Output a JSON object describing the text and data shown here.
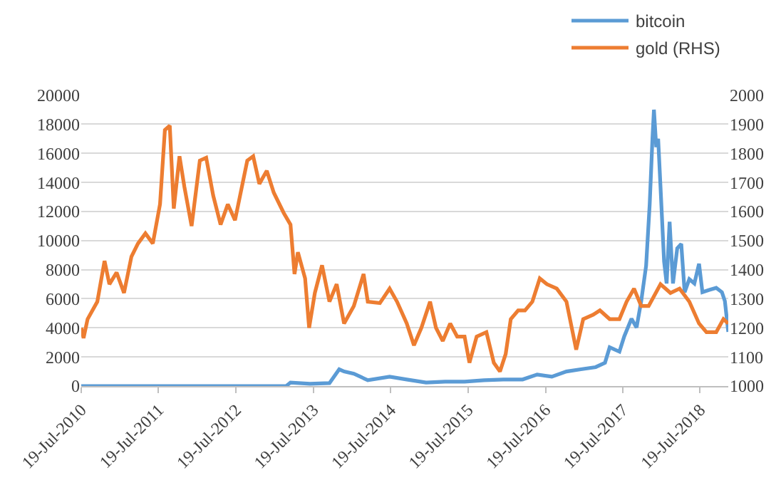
{
  "chart_data": {
    "type": "line",
    "xlim": [
      "2010-07-19",
      "2018-11-29"
    ],
    "xticks": [
      {
        "value": "2010-07-19",
        "label": "19-Jul-2010"
      },
      {
        "value": "2011-07-19",
        "label": "19-Jul-2011"
      },
      {
        "value": "2012-07-19",
        "label": "19-Jul-2012"
      },
      {
        "value": "2013-07-19",
        "label": "19-Jul-2013"
      },
      {
        "value": "2014-07-19",
        "label": "19-Jul-2014"
      },
      {
        "value": "2015-07-19",
        "label": "19-Jul-2015"
      },
      {
        "value": "2016-07-19",
        "label": "19-Jul-2016"
      },
      {
        "value": "2017-07-19",
        "label": "19-Jul-2017"
      },
      {
        "value": "2018-07-19",
        "label": "19-Jul-2018"
      }
    ],
    "ylim": [
      0,
      20000
    ],
    "yticks": [
      0,
      2000,
      4000,
      6000,
      8000,
      10000,
      12000,
      14000,
      16000,
      18000,
      20000
    ],
    "y2lim": [
      1000,
      2000
    ],
    "y2ticks": [
      1000,
      1100,
      1200,
      1300,
      1400,
      1500,
      1600,
      1700,
      1800,
      1900,
      2000
    ],
    "grid": "y",
    "legend": "top right",
    "series": [
      {
        "name": "bitcoin",
        "color": "#5b9bd5",
        "x": [
          "2010-07-19",
          "2013-03-13",
          "2013-04-02",
          "2013-07-03",
          "2013-10-03",
          "2013-11-18",
          "2013-12-11",
          "2014-01-26",
          "2014-04-02",
          "2014-07-14",
          "2014-10-03",
          "2015-01-02",
          "2015-04-02",
          "2015-07-03",
          "2015-10-03",
          "2016-01-02",
          "2016-04-02",
          "2016-06-10",
          "2016-08-18",
          "2016-10-26",
          "2017-01-02",
          "2017-03-13",
          "2017-04-26",
          "2017-05-18",
          "2017-07-03",
          "2017-07-26",
          "2017-08-29",
          "2017-09-22",
          "2017-10-14",
          "2017-11-06",
          "2017-11-23",
          "2017-12-06",
          "2017-12-13",
          "2017-12-24",
          "2018-01-02",
          "2018-01-13",
          "2018-01-30",
          "2018-02-11",
          "2018-02-25",
          "2018-03-13",
          "2018-04-02",
          "2018-04-21",
          "2018-05-07",
          "2018-05-29",
          "2018-06-22",
          "2018-07-14",
          "2018-07-30",
          "2018-08-29",
          "2018-10-03",
          "2018-10-30",
          "2018-11-13",
          "2018-11-29"
        ],
        "values": [
          0,
          0,
          240,
          150,
          200,
          1150,
          1000,
          850,
          400,
          640,
          450,
          240,
          300,
          300,
          400,
          450,
          450,
          790,
          640,
          1000,
          1150,
          1300,
          1600,
          2660,
          2360,
          3420,
          4630,
          4020,
          5840,
          8260,
          12500,
          17000,
          19000,
          16430,
          17000,
          13700,
          8560,
          7050,
          11290,
          7050,
          9470,
          9770,
          6450,
          7350,
          7050,
          8410,
          6450,
          6600,
          6750,
          6450,
          5840,
          3720
        ]
      },
      {
        "name": "gold (RHS)",
        "color": "#ed7d31",
        "axis": "y2",
        "x": [
          "2010-07-19",
          "2010-07-30",
          "2010-08-18",
          "2010-10-03",
          "2010-11-06",
          "2010-11-29",
          "2011-01-02",
          "2011-02-06",
          "2011-03-13",
          "2011-04-13",
          "2011-05-18",
          "2011-06-22",
          "2011-07-26",
          "2011-08-18",
          "2011-09-10",
          "2011-09-29",
          "2011-10-26",
          "2011-11-18",
          "2011-12-22",
          "2012-01-30",
          "2012-02-29",
          "2012-04-02",
          "2012-05-07",
          "2012-06-10",
          "2012-07-14",
          "2012-09-10",
          "2012-10-08",
          "2012-11-06",
          "2012-12-11",
          "2013-01-13",
          "2013-03-01",
          "2013-04-02",
          "2013-04-21",
          "2013-05-07",
          "2013-06-10",
          "2013-06-29",
          "2013-07-26",
          "2013-08-29",
          "2013-10-03",
          "2013-11-06",
          "2013-12-11",
          "2014-01-26",
          "2014-03-13",
          "2014-04-02",
          "2014-05-29",
          "2014-07-14",
          "2014-08-18",
          "2014-10-03",
          "2014-11-06",
          "2014-12-11",
          "2015-01-21",
          "2015-02-18",
          "2015-03-22",
          "2015-04-26",
          "2015-05-29",
          "2015-07-03",
          "2015-07-26",
          "2015-08-29",
          "2015-10-14",
          "2015-11-18",
          "2015-12-17",
          "2016-01-13",
          "2016-02-06",
          "2016-03-12",
          "2016-04-13",
          "2016-05-18",
          "2016-06-22",
          "2016-07-26",
          "2016-09-10",
          "2016-10-26",
          "2016-12-11",
          "2017-01-13",
          "2017-03-01",
          "2017-04-02",
          "2017-05-18",
          "2017-07-03",
          "2017-08-06",
          "2017-09-10",
          "2017-10-14",
          "2017-11-18",
          "2018-01-13",
          "2018-03-01",
          "2018-04-13",
          "2018-05-29",
          "2018-07-14",
          "2018-08-18",
          "2018-10-03",
          "2018-11-06",
          "2018-11-29"
        ],
        "values": [
          1200,
          1165,
          1230,
          1290,
          1430,
          1350,
          1390,
          1320,
          1445,
          1490,
          1525,
          1490,
          1625,
          1880,
          1895,
          1610,
          1790,
          1685,
          1550,
          1775,
          1785,
          1655,
          1555,
          1625,
          1570,
          1775,
          1790,
          1695,
          1740,
          1665,
          1595,
          1555,
          1385,
          1460,
          1370,
          1200,
          1320,
          1415,
          1290,
          1350,
          1215,
          1275,
          1385,
          1290,
          1285,
          1335,
          1290,
          1215,
          1140,
          1200,
          1290,
          1200,
          1155,
          1215,
          1170,
          1170,
          1080,
          1170,
          1185,
          1080,
          1050,
          1110,
          1230,
          1260,
          1260,
          1290,
          1370,
          1350,
          1335,
          1290,
          1125,
          1230,
          1245,
          1260,
          1230,
          1230,
          1290,
          1335,
          1275,
          1275,
          1350,
          1320,
          1335,
          1290,
          1215,
          1185,
          1185,
          1230,
          1215
        ]
      }
    ]
  }
}
